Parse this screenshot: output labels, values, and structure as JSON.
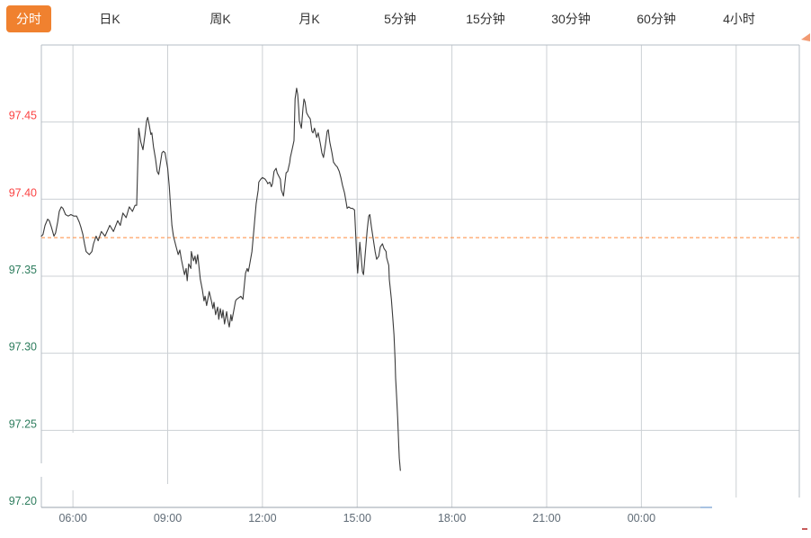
{
  "tabs": {
    "items": [
      {
        "label": "分时",
        "active": true
      },
      {
        "label": "日K",
        "active": false
      },
      {
        "label": "周K",
        "active": false
      },
      {
        "label": "月K",
        "active": false
      },
      {
        "label": "5分钟",
        "active": false
      },
      {
        "label": "15分钟",
        "active": false
      },
      {
        "label": "30分钟",
        "active": false
      },
      {
        "label": "60分钟",
        "active": false
      },
      {
        "label": "4小时",
        "active": false
      }
    ],
    "active_bg_color": "#f0812f",
    "active_text_color": "#ffffff",
    "inactive_text_color": "#333333"
  },
  "chart_data": {
    "type": "line",
    "title": "",
    "x_axis": {
      "start": "05:00",
      "span_hours": 24,
      "ticks": [
        {
          "time": "06:00",
          "label": "06:00"
        },
        {
          "time": "09:00",
          "label": "09:00"
        },
        {
          "time": "12:00",
          "label": "12:00"
        },
        {
          "time": "15:00",
          "label": "15:00"
        },
        {
          "time": "18:00",
          "label": "18:00"
        },
        {
          "time": "21:00",
          "label": "21:00"
        },
        {
          "time": "00:00",
          "label": "00:00"
        },
        {
          "time": "03:00",
          "label": ""
        }
      ],
      "label_color": "#5f6b76"
    },
    "y_axis": {
      "min": 97.2,
      "max": 97.5,
      "ticks": [
        97.45,
        97.4,
        97.35,
        97.3,
        97.25,
        97.2
      ],
      "above_close_color": "#fb4343",
      "below_close_color": "#2e7d5e"
    },
    "previous_close": 97.375,
    "previous_close_line_color": "#ff8a3c",
    "line_color": "#3a3a3a",
    "grid_color": "#ccd0d4",
    "border_color": "#b6bcc4",
    "last_price": 97.224,
    "series": [
      [
        "05:00",
        97.376
      ],
      [
        "05:03",
        97.377
      ],
      [
        "05:07",
        97.383
      ],
      [
        "05:12",
        97.387
      ],
      [
        "05:15",
        97.386
      ],
      [
        "05:19",
        97.382
      ],
      [
        "05:24",
        97.376
      ],
      [
        "05:27",
        97.378
      ],
      [
        "05:31",
        97.385
      ],
      [
        "05:34",
        97.392
      ],
      [
        "05:38",
        97.395
      ],
      [
        "05:41",
        97.394
      ],
      [
        "05:46",
        97.39
      ],
      [
        "05:51",
        97.389
      ],
      [
        "05:56",
        97.39
      ],
      [
        "06:02",
        97.389
      ],
      [
        "06:07",
        97.389
      ],
      [
        "06:12",
        97.385
      ],
      [
        "06:15",
        97.382
      ],
      [
        "06:19",
        97.377
      ],
      [
        "06:22",
        97.371
      ],
      [
        "06:25",
        97.366
      ],
      [
        "06:31",
        97.364
      ],
      [
        "06:36",
        97.366
      ],
      [
        "06:39",
        97.371
      ],
      [
        "06:44",
        97.376
      ],
      [
        "06:48",
        97.373
      ],
      [
        "06:54",
        97.379
      ],
      [
        "07:01",
        97.376
      ],
      [
        "07:10",
        97.383
      ],
      [
        "07:17",
        97.379
      ],
      [
        "07:25",
        97.386
      ],
      [
        "07:30",
        97.383
      ],
      [
        "07:35",
        97.391
      ],
      [
        "07:41",
        97.388
      ],
      [
        "07:47",
        97.395
      ],
      [
        "07:53",
        97.392
      ],
      [
        "07:58",
        97.396
      ],
      [
        "08:01",
        97.396
      ],
      [
        "08:03",
        97.42
      ],
      [
        "08:05",
        97.446
      ],
      [
        "08:09",
        97.437
      ],
      [
        "08:13",
        97.432
      ],
      [
        "08:17",
        97.442
      ],
      [
        "08:20",
        97.451
      ],
      [
        "08:22",
        97.453
      ],
      [
        "08:25",
        97.448
      ],
      [
        "08:28",
        97.442
      ],
      [
        "08:30",
        97.443
      ],
      [
        "08:33",
        97.434
      ],
      [
        "08:37",
        97.426
      ],
      [
        "08:40",
        97.418
      ],
      [
        "08:43",
        97.416
      ],
      [
        "08:49",
        97.43
      ],
      [
        "08:52",
        97.431
      ],
      [
        "08:55",
        97.43
      ],
      [
        "08:58",
        97.424
      ],
      [
        "09:00",
        97.42
      ],
      [
        "09:03",
        97.408
      ],
      [
        "09:05",
        97.398
      ],
      [
        "09:08",
        97.383
      ],
      [
        "09:11",
        97.376
      ],
      [
        "09:16",
        97.369
      ],
      [
        "09:20",
        97.364
      ],
      [
        "09:23",
        97.367
      ],
      [
        "09:26",
        97.361
      ],
      [
        "09:32",
        97.351
      ],
      [
        "09:35",
        97.355
      ],
      [
        "09:37",
        97.347
      ],
      [
        "09:40",
        97.358
      ],
      [
        "09:44",
        97.355
      ],
      [
        "09:45",
        97.366
      ],
      [
        "09:49",
        97.36
      ],
      [
        "09:52",
        97.363
      ],
      [
        "09:54",
        97.358
      ],
      [
        "09:57",
        97.364
      ],
      [
        "10:02",
        97.348
      ],
      [
        "10:06",
        97.341
      ],
      [
        "10:09",
        97.334
      ],
      [
        "10:11",
        97.337
      ],
      [
        "10:14",
        97.331
      ],
      [
        "10:19",
        97.34
      ],
      [
        "10:23",
        97.334
      ],
      [
        "10:26",
        97.329
      ],
      [
        "10:28",
        97.333
      ],
      [
        "10:31",
        97.325
      ],
      [
        "10:35",
        97.33
      ],
      [
        "10:37",
        97.322
      ],
      [
        "10:40",
        97.329
      ],
      [
        "10:43",
        97.323
      ],
      [
        "10:45",
        97.328
      ],
      [
        "10:48",
        97.319
      ],
      [
        "10:52",
        97.327
      ],
      [
        "10:54",
        97.322
      ],
      [
        "10:57",
        97.317
      ],
      [
        "11:00",
        97.325
      ],
      [
        "11:02",
        97.321
      ],
      [
        "11:09",
        97.334
      ],
      [
        "11:11",
        97.335
      ],
      [
        "11:19",
        97.337
      ],
      [
        "11:23",
        97.335
      ],
      [
        "11:28",
        97.352
      ],
      [
        "11:31",
        97.355
      ],
      [
        "11:33",
        97.353
      ],
      [
        "11:35",
        97.356
      ],
      [
        "11:40",
        97.366
      ],
      [
        "11:43",
        97.377
      ],
      [
        "11:45",
        97.385
      ],
      [
        "11:48",
        97.397
      ],
      [
        "11:52",
        97.406
      ],
      [
        "11:53",
        97.411
      ],
      [
        "11:57",
        97.413
      ],
      [
        "12:00",
        97.414
      ],
      [
        "12:05",
        97.413
      ],
      [
        "12:09",
        97.411
      ],
      [
        "12:10",
        97.41
      ],
      [
        "12:14",
        97.411
      ],
      [
        "12:17",
        97.408
      ],
      [
        "12:19",
        97.41
      ],
      [
        "12:22",
        97.418
      ],
      [
        "12:26",
        97.42
      ],
      [
        "12:28",
        97.417
      ],
      [
        "12:31",
        97.415
      ],
      [
        "12:34",
        97.413
      ],
      [
        "12:36",
        97.406
      ],
      [
        "12:40",
        97.402
      ],
      [
        "12:43",
        97.411
      ],
      [
        "12:45",
        97.417
      ],
      [
        "12:48",
        97.418
      ],
      [
        "12:52",
        97.424
      ],
      [
        "12:53",
        97.427
      ],
      [
        "12:57",
        97.433
      ],
      [
        "13:00",
        97.438
      ],
      [
        "13:02",
        97.465
      ],
      [
        "13:05",
        97.472
      ],
      [
        "13:07",
        97.468
      ],
      [
        "13:09",
        97.458
      ],
      [
        "13:10",
        97.451
      ],
      [
        "13:14",
        97.446
      ],
      [
        "13:17",
        97.459
      ],
      [
        "13:19",
        97.465
      ],
      [
        "13:21",
        97.463
      ],
      [
        "13:24",
        97.456
      ],
      [
        "13:27",
        97.454
      ],
      [
        "13:31",
        97.452
      ],
      [
        "13:34",
        97.444
      ],
      [
        "13:36",
        97.443
      ],
      [
        "13:39",
        97.446
      ],
      [
        "13:43",
        97.44
      ],
      [
        "13:46",
        97.443
      ],
      [
        "13:50",
        97.436
      ],
      [
        "13:53",
        97.43
      ],
      [
        "13:56",
        97.427
      ],
      [
        "14:00",
        97.436
      ],
      [
        "14:03",
        97.444
      ],
      [
        "14:05",
        97.445
      ],
      [
        "14:08",
        97.437
      ],
      [
        "14:12",
        97.43
      ],
      [
        "14:15",
        97.424
      ],
      [
        "14:19",
        97.422
      ],
      [
        "14:22",
        97.421
      ],
      [
        "14:26",
        97.418
      ],
      [
        "14:29",
        97.414
      ],
      [
        "14:32",
        97.409
      ],
      [
        "14:36",
        97.404
      ],
      [
        "14:39",
        97.398
      ],
      [
        "14:41",
        97.394
      ],
      [
        "14:44",
        97.395
      ],
      [
        "14:48",
        97.394
      ],
      [
        "14:51",
        97.394
      ],
      [
        "14:55",
        97.393
      ],
      [
        "14:56",
        97.386
      ],
      [
        "15:00",
        97.356
      ],
      [
        "15:01",
        97.352
      ],
      [
        "15:03",
        97.362
      ],
      [
        "15:05",
        97.372
      ],
      [
        "15:07",
        97.365
      ],
      [
        "15:10",
        97.353
      ],
      [
        "15:12",
        97.351
      ],
      [
        "15:15",
        97.363
      ],
      [
        "15:19",
        97.38
      ],
      [
        "15:22",
        97.389
      ],
      [
        "15:24",
        97.39
      ],
      [
        "15:27",
        97.382
      ],
      [
        "15:31",
        97.373
      ],
      [
        "15:34",
        97.366
      ],
      [
        "15:37",
        97.361
      ],
      [
        "15:41",
        97.363
      ],
      [
        "15:44",
        97.369
      ],
      [
        "15:48",
        97.371
      ],
      [
        "15:51",
        97.368
      ],
      [
        "15:55",
        97.366
      ],
      [
        "15:56",
        97.362
      ],
      [
        "16:00",
        97.357
      ],
      [
        "16:01",
        97.348
      ],
      [
        "16:05",
        97.335
      ],
      [
        "16:08",
        97.321
      ],
      [
        "16:10",
        97.312
      ],
      [
        "16:12",
        97.296
      ],
      [
        "16:13",
        97.284
      ],
      [
        "16:15",
        97.271
      ],
      [
        "16:17",
        97.258
      ],
      [
        "16:19",
        97.24
      ],
      [
        "16:20",
        97.232
      ],
      [
        "16:22",
        97.224
      ]
    ]
  }
}
